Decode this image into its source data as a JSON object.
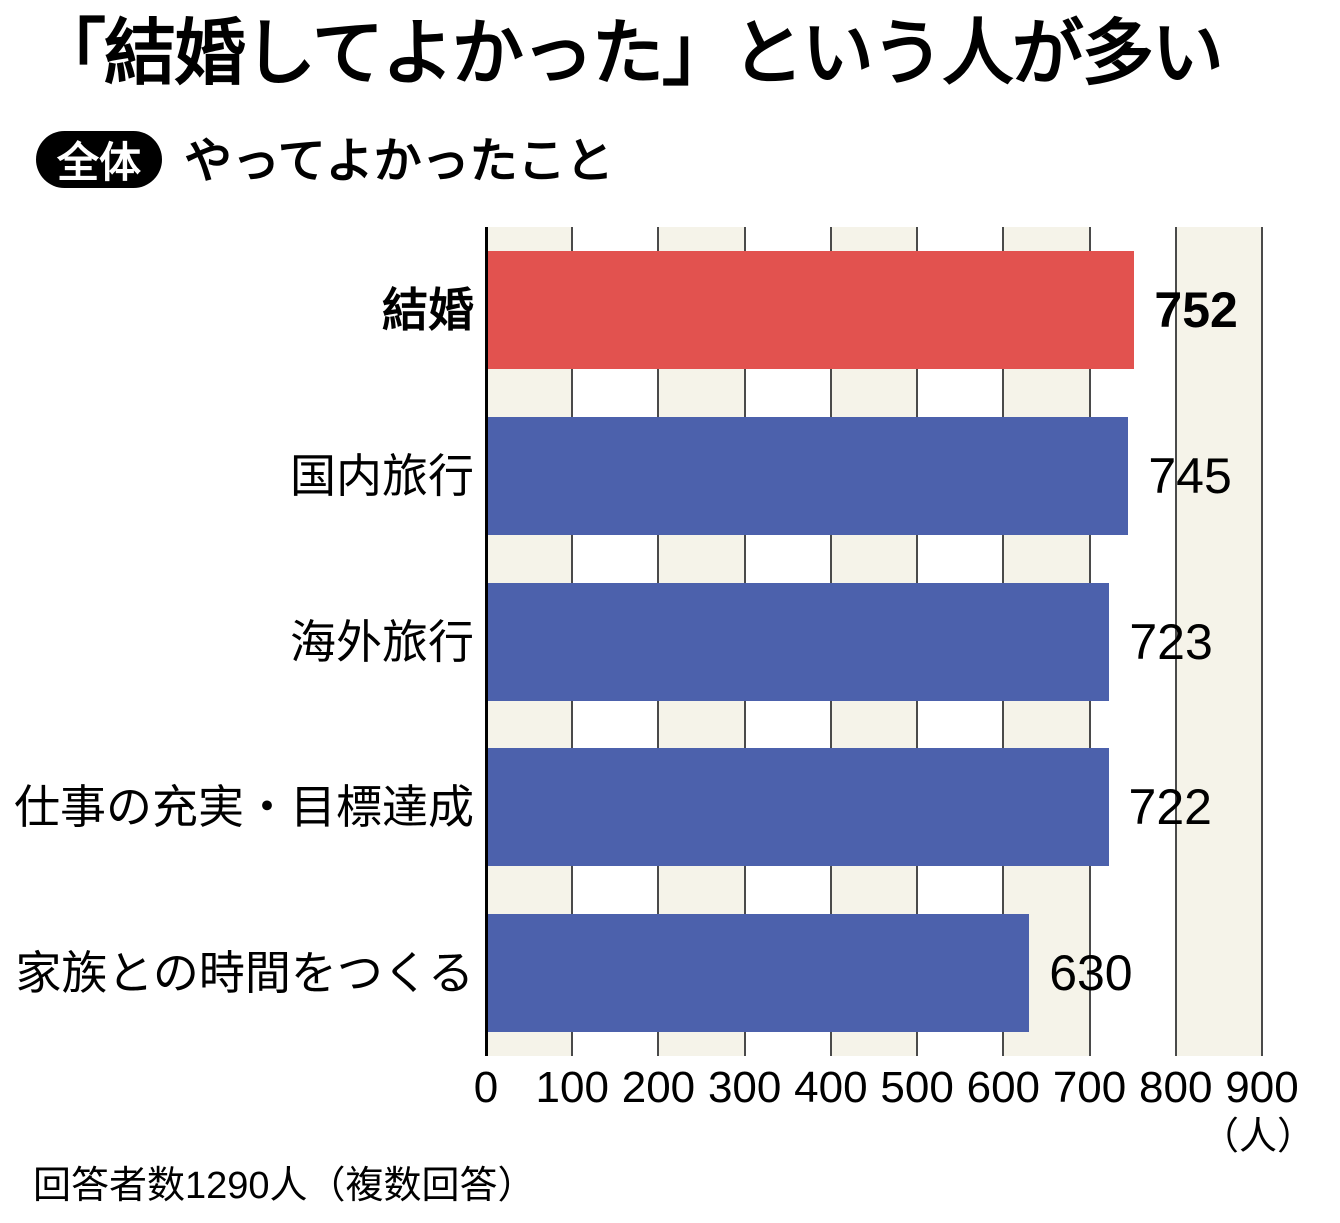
{
  "header": {
    "title": "「結婚してよかった」という人が多い",
    "badge": "全体",
    "subtitle": "やってよかったこと"
  },
  "chart_data": {
    "type": "bar",
    "orientation": "horizontal",
    "title": "「結婚してよかった」という人が多い",
    "badge": "全体",
    "subtitle": "やってよかったこと",
    "categories": [
      "結婚",
      "国内旅行",
      "海外旅行",
      "仕事の充実・目標達成",
      "家族との時間をつくる"
    ],
    "values": [
      752,
      745,
      723,
      722,
      630
    ],
    "highlight_index": 0,
    "xlim": [
      0,
      900
    ],
    "xticks": [
      0,
      100,
      200,
      300,
      400,
      500,
      600,
      700,
      800,
      900
    ],
    "unit": "（人）",
    "grid": true,
    "legend": "none",
    "value_labels": true,
    "colors": {
      "highlight_bar": "#e2524f",
      "default_bar": "#4c61ac",
      "stripe": "#f5f3e9",
      "gridline": "#4a4a4a",
      "axis": "#000000",
      "text": "#000000",
      "badge_bg": "#000000",
      "badge_text": "#ffffff"
    }
  },
  "footnote": "回答者数1290人（複数回答）"
}
